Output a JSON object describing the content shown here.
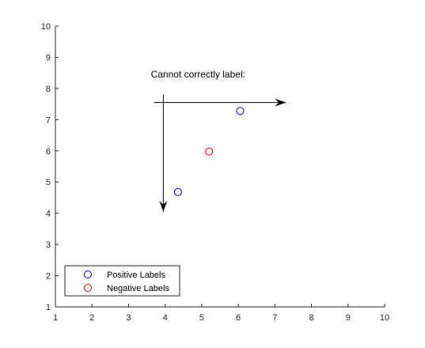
{
  "chart_data": {
    "type": "scatter",
    "xlim": [
      1,
      10
    ],
    "ylim": [
      1,
      10
    ],
    "xticks": [
      1,
      2,
      3,
      4,
      5,
      6,
      7,
      8,
      9,
      10
    ],
    "yticks": [
      1,
      2,
      3,
      4,
      5,
      6,
      7,
      8,
      9,
      10
    ],
    "grid": false,
    "title": "",
    "xlabel": "",
    "ylabel": "",
    "series": [
      {
        "name": "Positive Labels",
        "color": "#0000ff",
        "marker": "circle-open",
        "points": [
          {
            "x": 4.35,
            "y": 4.68
          },
          {
            "x": 6.05,
            "y": 7.28
          }
        ]
      },
      {
        "name": "Negative Labels",
        "color": "#ff0000",
        "marker": "circle-open",
        "points": [
          {
            "x": 5.2,
            "y": 5.98
          }
        ]
      }
    ],
    "legend": {
      "placement": "bottom-left"
    },
    "annotation": {
      "text": "Cannot correctly label:",
      "x": 4.9,
      "y": 8.35
    },
    "arrows": [
      {
        "name": "horizontal-arrow",
        "from": {
          "x": 3.7,
          "y": 7.55
        },
        "to": {
          "x": 7.3,
          "y": 7.55
        }
      },
      {
        "name": "vertical-arrow",
        "from": {
          "x": 3.95,
          "y": 7.8
        },
        "to": {
          "x": 3.95,
          "y": 4.05
        }
      }
    ],
    "axis_color": "#262626"
  }
}
